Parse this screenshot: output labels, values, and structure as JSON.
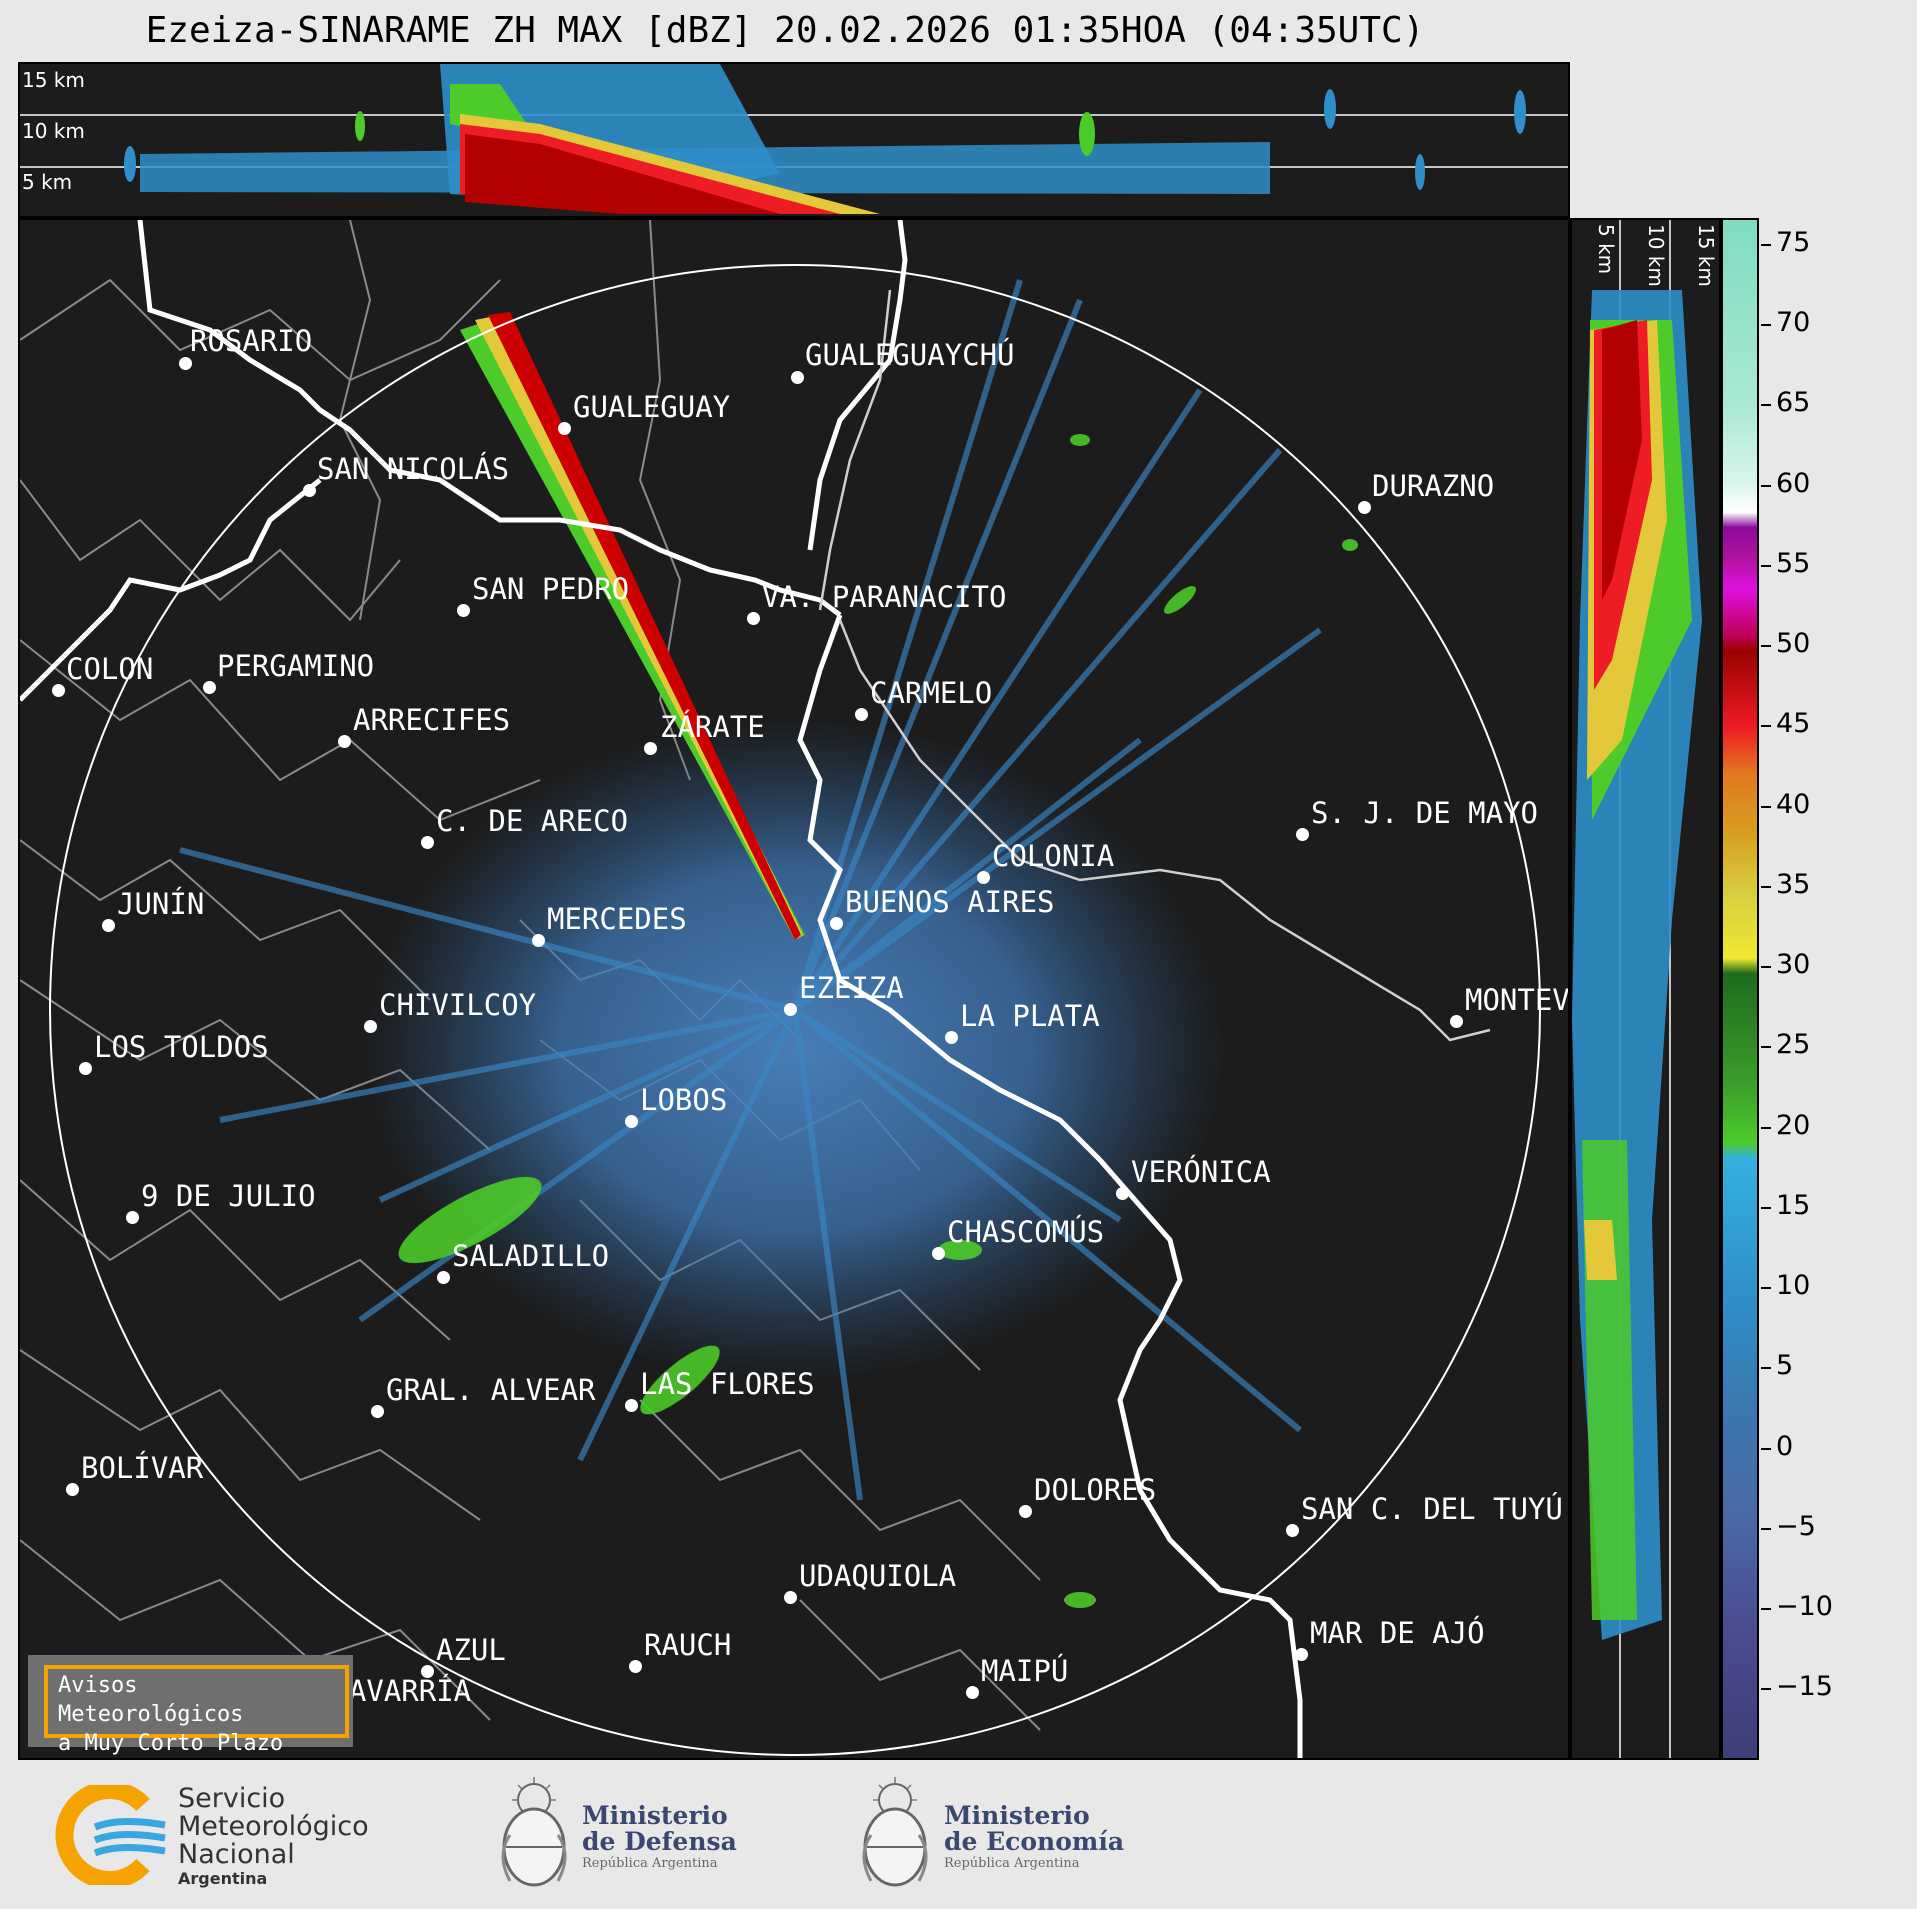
{
  "title": "Ezeiza-SINARAME ZH MAX [dBZ] 20.02.2026 01:35HOA (04:35UTC)",
  "top_panel": {
    "height_labels": [
      "15 km",
      "10 km",
      "5 km"
    ]
  },
  "side_panel": {
    "height_labels": [
      "5 km",
      "10 km",
      "15 km"
    ]
  },
  "colorbar": {
    "ticks": [
      "75",
      "70",
      "65",
      "60",
      "55",
      "50",
      "45",
      "40",
      "35",
      "30",
      "25",
      "20",
      "15",
      "10",
      "5",
      "0",
      "−5",
      "−10",
      "−15"
    ]
  },
  "cities": [
    {
      "name": "ROSARIO"
    },
    {
      "name": "GUALEGUAYCHÚ"
    },
    {
      "name": "GUALEGUAY"
    },
    {
      "name": "SAN NICOLÁS"
    },
    {
      "name": "DURAZNO"
    },
    {
      "name": "SAN PEDRO"
    },
    {
      "name": "VA. PARANACITO"
    },
    {
      "name": "COLON"
    },
    {
      "name": "PERGAMINO"
    },
    {
      "name": "CARMELO"
    },
    {
      "name": "ARRECIFES"
    },
    {
      "name": "ZÁRATE"
    },
    {
      "name": "S. J. DE MAYO"
    },
    {
      "name": "C. DE ARECO"
    },
    {
      "name": "COLONIA"
    },
    {
      "name": "JUNÍN"
    },
    {
      "name": "BUENOS AIRES"
    },
    {
      "name": "MERCEDES"
    },
    {
      "name": "EZEIZA"
    },
    {
      "name": "MONTEVIDEO"
    },
    {
      "name": "CHIVILCOY"
    },
    {
      "name": "LA PLATA"
    },
    {
      "name": "LOS TOLDOS"
    },
    {
      "name": "LOBOS"
    },
    {
      "name": "VERÓNICA"
    },
    {
      "name": "9 DE JULIO"
    },
    {
      "name": "CHASCOMÚS"
    },
    {
      "name": "SALADILLO"
    },
    {
      "name": "GRAL. ALVEAR"
    },
    {
      "name": "LAS FLORES"
    },
    {
      "name": "BOLÍVAR"
    },
    {
      "name": "DOLORES"
    },
    {
      "name": "SAN C. DEL TUYÚ"
    },
    {
      "name": "UDAQUIOLA"
    },
    {
      "name": "MAR DE AJÓ"
    },
    {
      "name": "AZUL"
    },
    {
      "name": "RAUCH"
    },
    {
      "name": "OLAVARRÍA"
    },
    {
      "name": "MAIPÚ"
    }
  ],
  "warning": {
    "line1": "Avisos Meteorológicos",
    "line2": "a Muy Corto Plazo"
  },
  "logos": {
    "smn": {
      "line1": "Servicio",
      "line2": "Meteorológico",
      "line3": "Nacional",
      "line4": "Argentina"
    },
    "defensa": {
      "line1": "Ministerio",
      "line2": "de Defensa",
      "line3": "República Argentina"
    },
    "economia": {
      "line1": "Ministerio",
      "line2": "de Economía",
      "line3": "República Argentina"
    }
  },
  "colors": {
    "background_panel": "#1c1c1c",
    "border_line": "#ffffff",
    "admin_line": "#8a8a8a",
    "echo_base": "#4a7fb8",
    "echo_green": "#4ccb2a",
    "echo_red": "#cc0000",
    "accent_orange": "#f5a300"
  }
}
